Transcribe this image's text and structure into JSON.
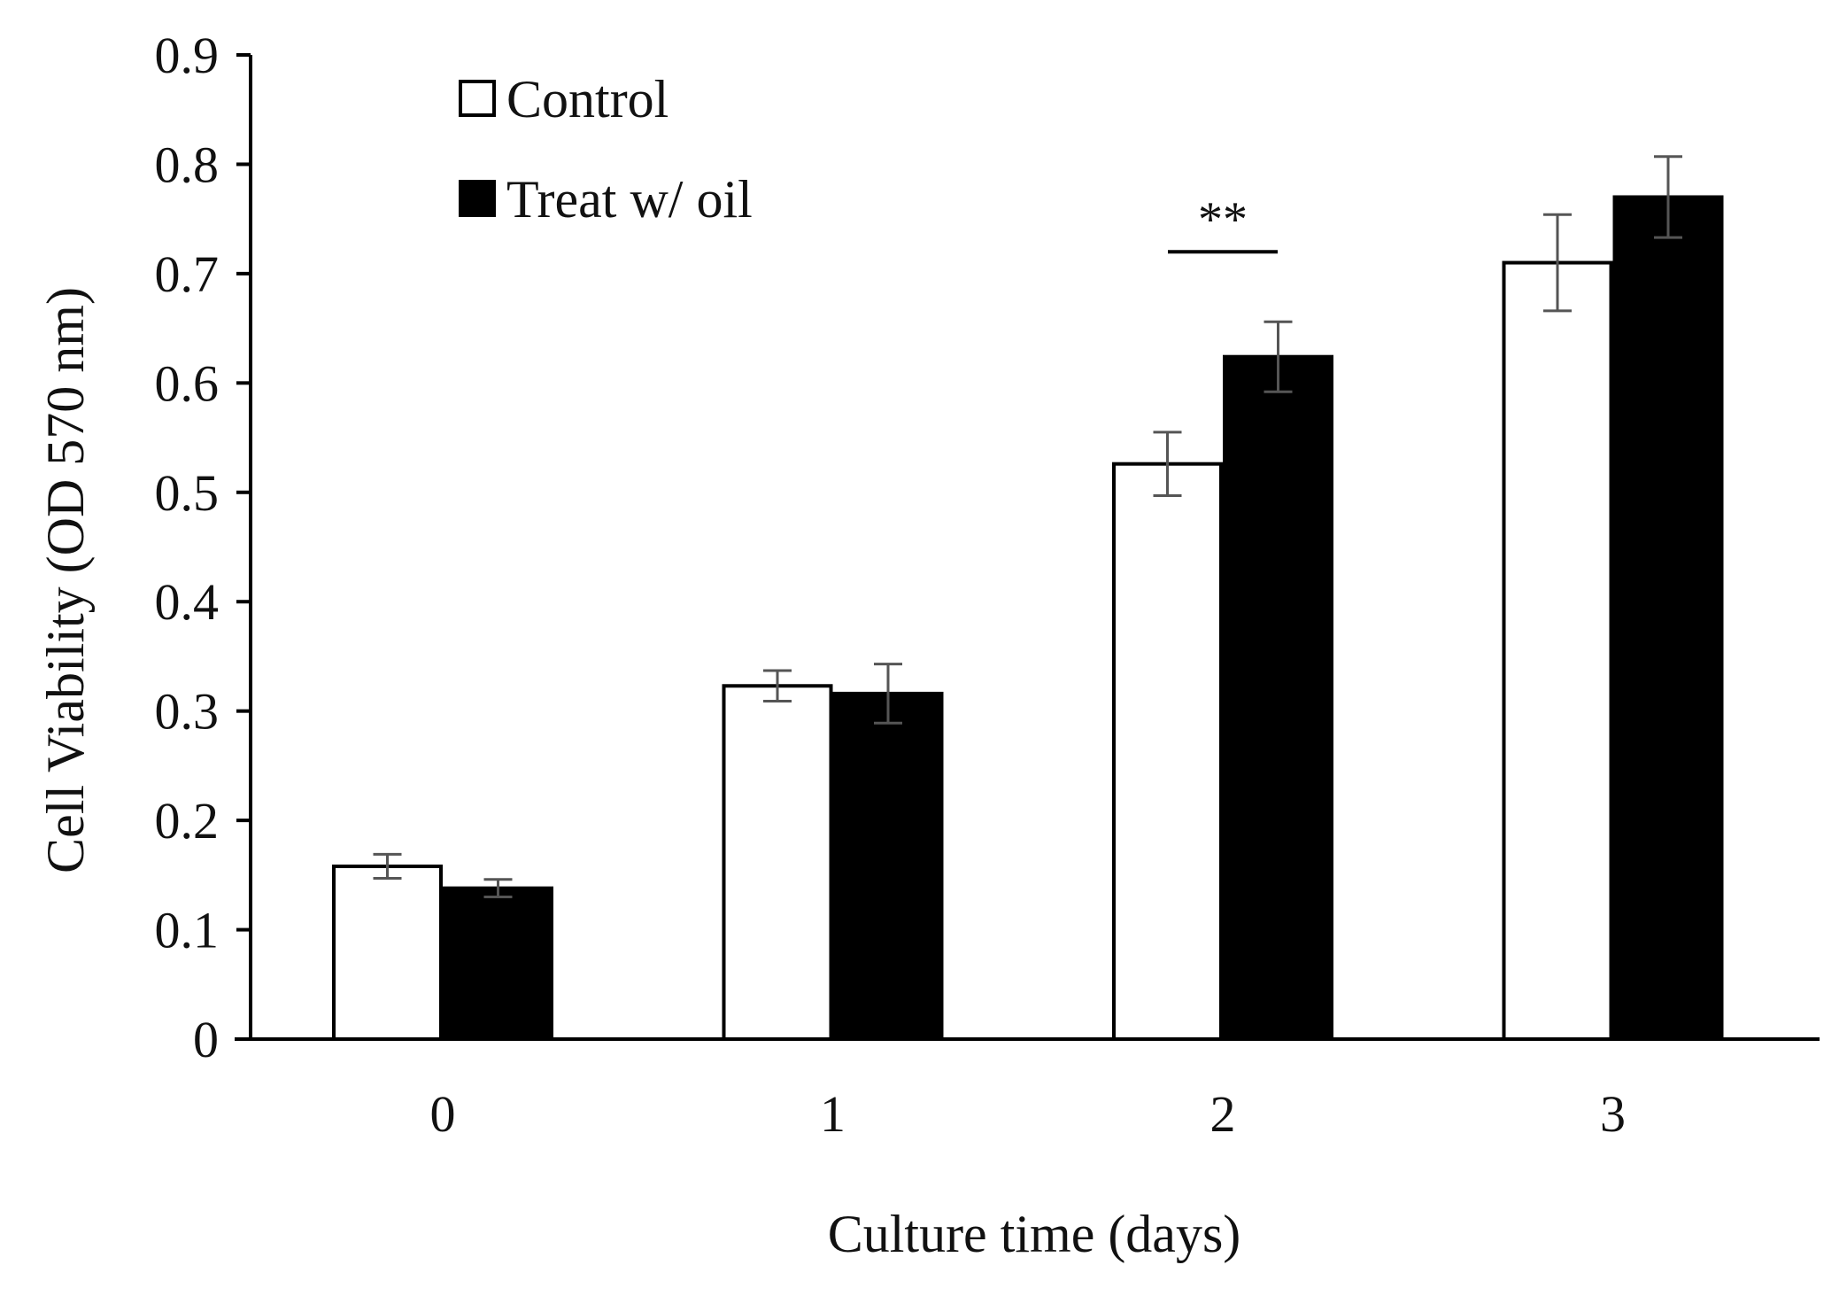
{
  "chart_data": {
    "type": "bar",
    "title": "",
    "xlabel": "Culture time (days)",
    "ylabel": "Cell Viability (OD 570 nm)",
    "ylim": [
      0,
      0.9
    ],
    "yticks": [
      0,
      0.1,
      0.2,
      0.3,
      0.4,
      0.5,
      0.6,
      0.7,
      0.8,
      0.9
    ],
    "ytick_labels": [
      "0",
      "0.1",
      "0.2",
      "0.3",
      "0.4",
      "0.5",
      "0.6",
      "0.7",
      "0.8",
      "0.9"
    ],
    "categories": [
      "0",
      "1",
      "2",
      "3"
    ],
    "grid": false,
    "legend_position": "top-left",
    "series": [
      {
        "name": "Control",
        "fill": "#ffffff",
        "stroke": "#000000",
        "values": [
          0.158,
          0.323,
          0.526,
          0.71
        ],
        "errors": [
          0.011,
          0.014,
          0.029,
          0.044
        ]
      },
      {
        "name": "Treat w/ oil",
        "fill": "#000000",
        "stroke": "#000000",
        "values": [
          0.138,
          0.316,
          0.624,
          0.77
        ],
        "errors": [
          0.008,
          0.027,
          0.032,
          0.037
        ]
      }
    ],
    "annotations": [
      {
        "text": "**",
        "category_index": 2,
        "level": 0.72
      }
    ]
  }
}
